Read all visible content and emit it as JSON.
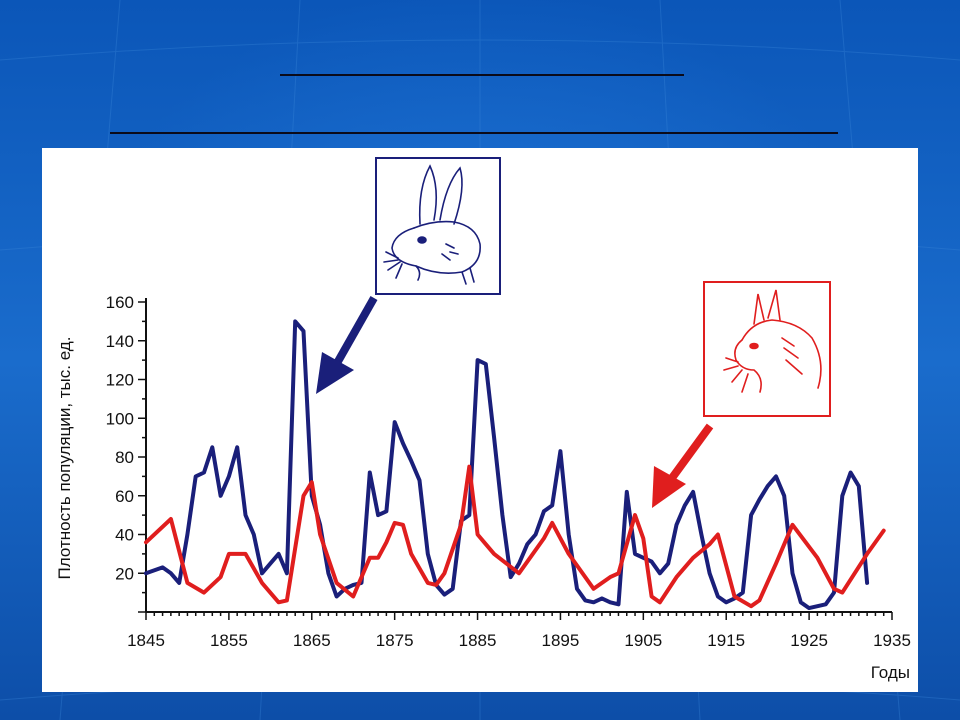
{
  "slide": {
    "title_line_1": "",
    "title_line_2": ""
  },
  "chart_data": {
    "type": "line",
    "title": "",
    "xlabel": "Годы",
    "ylabel": "Плотность популяции, тыс. ед.",
    "xlim": [
      1845,
      1935
    ],
    "ylim": [
      0,
      160
    ],
    "x_ticks": [
      "1845",
      "1855",
      "1865",
      "1875",
      "1885",
      "1895",
      "1905",
      "1915",
      "1925",
      "1935"
    ],
    "y_ticks": [
      "20",
      "40",
      "60",
      "80",
      "100",
      "120",
      "140",
      "160"
    ],
    "series": [
      {
        "name": "",
        "color": "#1a1f7a",
        "icon": "hare-icon",
        "x": [
          1845,
          1847,
          1848,
          1849,
          1850,
          1851,
          1852,
          1853,
          1854,
          1855,
          1856,
          1857,
          1858,
          1859,
          1860,
          1861,
          1862,
          1863,
          1864,
          1865,
          1866,
          1867,
          1868,
          1869,
          1870,
          1871,
          1872,
          1873,
          1874,
          1875,
          1876,
          1877,
          1878,
          1879,
          1880,
          1881,
          1882,
          1883,
          1884,
          1885,
          1886,
          1887,
          1888,
          1889,
          1890,
          1891,
          1892,
          1893,
          1894,
          1895,
          1896,
          1897,
          1898,
          1899,
          1900,
          1901,
          1902,
          1903,
          1904,
          1905,
          1906,
          1907,
          1908,
          1909,
          1910,
          1911,
          1912,
          1913,
          1914,
          1915,
          1916,
          1917,
          1918,
          1919,
          1920,
          1921,
          1922,
          1923,
          1924,
          1925,
          1926,
          1927,
          1928,
          1929,
          1930,
          1931,
          1932
        ],
        "y": [
          20,
          23,
          20,
          15,
          40,
          70,
          72,
          85,
          60,
          70,
          85,
          50,
          40,
          20,
          25,
          30,
          20,
          150,
          145,
          60,
          45,
          20,
          8,
          12,
          14,
          15,
          72,
          50,
          52,
          98,
          87,
          78,
          68,
          30,
          14,
          9,
          12,
          47,
          50,
          130,
          128,
          90,
          50,
          18,
          25,
          35,
          40,
          52,
          55,
          83,
          40,
          12,
          6,
          5,
          7,
          5,
          4,
          62,
          30,
          28,
          26,
          20,
          25,
          45,
          55,
          62,
          40,
          20,
          8,
          5,
          7,
          10,
          50,
          58,
          65,
          70,
          60,
          20,
          5,
          2,
          3,
          4,
          10,
          60,
          72,
          65,
          15
        ]
      },
      {
        "name": "",
        "color": "#e01e1e",
        "icon": "lynx-icon",
        "x": [
          1845,
          1848,
          1850,
          1852,
          1854,
          1855,
          1857,
          1859,
          1861,
          1862,
          1864,
          1865,
          1866,
          1868,
          1870,
          1872,
          1873,
          1874,
          1875,
          1876,
          1877,
          1879,
          1880,
          1881,
          1883,
          1884,
          1885,
          1886,
          1887,
          1890,
          1893,
          1894,
          1896,
          1899,
          1901,
          1902,
          1904,
          1905,
          1906,
          1907,
          1909,
          1911,
          1913,
          1914,
          1916,
          1918,
          1919,
          1921,
          1923,
          1926,
          1928,
          1929,
          1932,
          1934
        ],
        "y": [
          36,
          48,
          15,
          10,
          18,
          30,
          30,
          15,
          5,
          6,
          60,
          67,
          40,
          15,
          8,
          28,
          28,
          36,
          46,
          45,
          30,
          15,
          14,
          20,
          45,
          75,
          40,
          35,
          30,
          20,
          38,
          46,
          30,
          12,
          18,
          20,
          50,
          38,
          8,
          5,
          18,
          28,
          35,
          40,
          8,
          3,
          6,
          25,
          45,
          28,
          12,
          10,
          30,
          42
        ]
      }
    ]
  }
}
